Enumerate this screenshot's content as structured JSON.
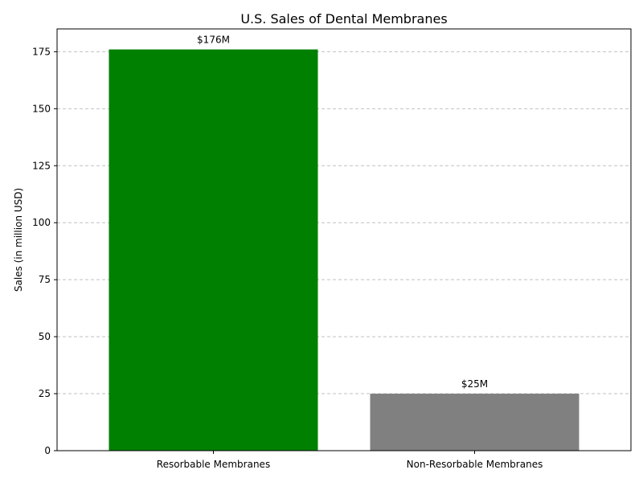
{
  "chart_data": {
    "type": "bar",
    "title": "U.S. Sales of Dental Membranes",
    "xlabel": "",
    "ylabel": "Sales (in million USD)",
    "categories": [
      "Resorbable Membranes",
      "Non-Resorbable Membranes"
    ],
    "values": [
      176,
      25
    ],
    "data_labels": [
      "$176M",
      "$25M"
    ],
    "colors": [
      "#008000",
      "#808080"
    ],
    "ylim": [
      0,
      185
    ],
    "yticks": [
      0,
      25,
      50,
      75,
      100,
      125,
      150,
      175
    ],
    "ytick_labels": [
      "0",
      "25",
      "50",
      "75",
      "100",
      "125",
      "150",
      "175"
    ],
    "grid": "y-dashed",
    "legend": "none"
  }
}
